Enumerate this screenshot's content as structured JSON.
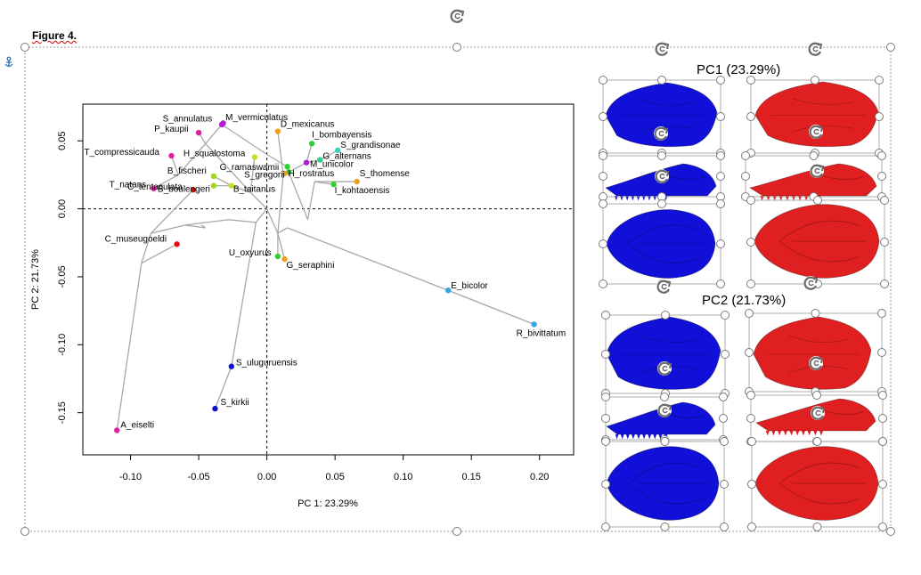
{
  "figure_label": "Figure 4.",
  "colors": {
    "negative_shape": "#1010d8",
    "positive_shape": "#e02020",
    "tree_line": "#a8a8a8",
    "handle": "#7a7a7a"
  },
  "icons": [
    "anchor-icon",
    "rotate-icon"
  ],
  "panels": {
    "pc1_title": "PC1 (23.29%)",
    "pc2_title": "PC2 (21.73%)"
  },
  "chart_data": {
    "type": "scatter",
    "xlabel": "PC 1: 23.29%",
    "ylabel": "PC 2: 21.73%",
    "xlim": [
      -0.135,
      0.225
    ],
    "ylim": [
      -0.181,
      0.077
    ],
    "x_ticks": [
      -0.1,
      -0.05,
      0.0,
      0.05,
      0.1,
      0.15,
      0.2
    ],
    "x_tick_labels": [
      "-0.10",
      "-0.05",
      "0.00",
      "0.05",
      "0.10",
      "0.15",
      "0.20"
    ],
    "y_ticks": [
      -0.15,
      -0.1,
      -0.05,
      0.0,
      0.05
    ],
    "y_tick_labels": [
      "-0.15",
      "-0.10",
      "-0.05",
      "0.00",
      "0.05"
    ],
    "reference_lines": {
      "x": 0,
      "y": 0
    },
    "points": [
      {
        "label": "S_annulatus",
        "x": -0.032,
        "y": 0.063,
        "color": "#b020d0"
      },
      {
        "label": "M_vermiculatus",
        "x": -0.033,
        "y": 0.062,
        "color": "#b020d0"
      },
      {
        "label": "P_kaupii",
        "x": -0.05,
        "y": 0.056,
        "color": "#e020a0"
      },
      {
        "label": "T_compressicauda",
        "x": -0.07,
        "y": 0.039,
        "color": "#e020a0"
      },
      {
        "label": "T_natans",
        "x": -0.083,
        "y": 0.015,
        "color": "#e020a0"
      },
      {
        "label": "H_squalostoma",
        "x": -0.009,
        "y": 0.038,
        "color": "#c8e020"
      },
      {
        "label": "G_ramaswamii",
        "x": 0.015,
        "y": 0.031,
        "color": "#30d030"
      },
      {
        "label": "B_fischeri",
        "x": -0.039,
        "y": 0.024,
        "color": "#a0d820"
      },
      {
        "label": "S_gregorii",
        "x": 0.016,
        "y": 0.027,
        "color": "#30d030"
      },
      {
        "label": "B_boulengeri",
        "x": -0.039,
        "y": 0.017,
        "color": "#a0d820"
      },
      {
        "label": "B_taitanus",
        "x": -0.026,
        "y": 0.017,
        "color": "#c8e020"
      },
      {
        "label": "D_mexicanus",
        "x": 0.008,
        "y": 0.057,
        "color": "#f0a020"
      },
      {
        "label": "I_bombayensis",
        "x": 0.033,
        "y": 0.048,
        "color": "#30d030"
      },
      {
        "label": "S_grandisonae",
        "x": 0.052,
        "y": 0.043,
        "color": "#30d8c0"
      },
      {
        "label": "G_alternans",
        "x": 0.039,
        "y": 0.036,
        "color": "#30d090"
      },
      {
        "label": "M_unicolor",
        "x": 0.029,
        "y": 0.034,
        "color": "#b020d0"
      },
      {
        "label": "H_rostratus",
        "x": 0.013,
        "y": 0.026,
        "color": "#f0a020"
      },
      {
        "label": "S_thomense",
        "x": 0.066,
        "y": 0.02,
        "color": "#f0a020"
      },
      {
        "label": "I_kohtaoensis",
        "x": 0.049,
        "y": 0.018,
        "color": "#30d030"
      },
      {
        "label": "C_tentaculata",
        "x": -0.054,
        "y": 0.014,
        "color": "#e01010"
      },
      {
        "label": "C_museugoeldi",
        "x": -0.066,
        "y": -0.026,
        "color": "#e01010"
      },
      {
        "label": "U_oxyurus",
        "x": 0.008,
        "y": -0.035,
        "color": "#30d030"
      },
      {
        "label": "G_seraphini",
        "x": 0.013,
        "y": -0.037,
        "color": "#f0a020"
      },
      {
        "label": "E_bicolor",
        "x": 0.133,
        "y": -0.06,
        "color": "#30a8e8"
      },
      {
        "label": "R_bivittatum",
        "x": 0.196,
        "y": -0.085,
        "color": "#30a8e8"
      },
      {
        "label": "S_uluguruensis",
        "x": -0.026,
        "y": -0.116,
        "color": "#1010d0"
      },
      {
        "label": "S_kirkii",
        "x": -0.038,
        "y": -0.147,
        "color": "#1010d0"
      },
      {
        "label": "A_eiselti",
        "x": -0.11,
        "y": -0.163,
        "color": "#e020a0"
      }
    ],
    "tree_edges": [
      [
        [
          -0.11,
          -0.163
        ],
        [
          -0.092,
          -0.04
        ]
      ],
      [
        [
          -0.092,
          -0.04
        ],
        [
          -0.066,
          -0.026
        ]
      ],
      [
        [
          -0.092,
          -0.04
        ],
        [
          -0.085,
          -0.018
        ]
      ],
      [
        [
          -0.085,
          -0.018
        ],
        [
          -0.054,
          0.014
        ]
      ],
      [
        [
          -0.085,
          -0.018
        ],
        [
          -0.06,
          -0.012
        ]
      ],
      [
        [
          -0.06,
          -0.012
        ],
        [
          -0.045,
          -0.014
        ]
      ],
      [
        [
          -0.045,
          -0.014
        ],
        [
          -0.048,
          -0.012
        ]
      ],
      [
        [
          -0.06,
          -0.012
        ],
        [
          -0.028,
          -0.008
        ]
      ],
      [
        [
          -0.028,
          -0.008
        ],
        [
          -0.008,
          -0.01
        ]
      ],
      [
        [
          -0.008,
          -0.01
        ],
        [
          -0.026,
          -0.116
        ]
      ],
      [
        [
          -0.026,
          -0.116
        ],
        [
          -0.038,
          -0.147
        ]
      ],
      [
        [
          -0.008,
          -0.01
        ],
        [
          0.0,
          0.0
        ]
      ],
      [
        [
          0.0,
          0.0
        ],
        [
          -0.012,
          0.012
        ]
      ],
      [
        [
          -0.012,
          0.012
        ],
        [
          -0.009,
          0.038
        ]
      ],
      [
        [
          -0.012,
          0.012
        ],
        [
          -0.026,
          0.017
        ]
      ],
      [
        [
          -0.026,
          0.017
        ],
        [
          -0.039,
          0.024
        ]
      ],
      [
        [
          -0.026,
          0.017
        ],
        [
          -0.039,
          0.017
        ]
      ],
      [
        [
          -0.012,
          0.012
        ],
        [
          -0.045,
          0.048
        ]
      ],
      [
        [
          -0.045,
          0.048
        ],
        [
          -0.05,
          0.056
        ]
      ],
      [
        [
          -0.045,
          0.048
        ],
        [
          -0.033,
          0.062
        ]
      ],
      [
        [
          -0.033,
          0.062
        ],
        [
          -0.032,
          0.063
        ]
      ],
      [
        [
          -0.045,
          0.048
        ],
        [
          -0.065,
          0.025
        ]
      ],
      [
        [
          -0.065,
          0.025
        ],
        [
          -0.07,
          0.039
        ]
      ],
      [
        [
          -0.065,
          0.025
        ],
        [
          -0.083,
          0.015
        ]
      ],
      [
        [
          -0.033,
          0.062
        ],
        [
          0.0,
          0.04
        ]
      ],
      [
        [
          0.0,
          0.04
        ],
        [
          0.015,
          0.031
        ]
      ],
      [
        [
          0.0,
          0.0
        ],
        [
          0.008,
          -0.018
        ]
      ],
      [
        [
          0.008,
          -0.018
        ],
        [
          0.008,
          -0.035
        ]
      ],
      [
        [
          0.008,
          -0.018
        ],
        [
          0.013,
          -0.037
        ]
      ],
      [
        [
          0.008,
          -0.018
        ],
        [
          0.012,
          0.025
        ]
      ],
      [
        [
          0.012,
          0.025
        ],
        [
          0.008,
          0.057
        ]
      ],
      [
        [
          0.012,
          0.025
        ],
        [
          0.013,
          0.026
        ]
      ],
      [
        [
          0.012,
          0.025
        ],
        [
          0.016,
          0.027
        ]
      ],
      [
        [
          0.016,
          0.027
        ],
        [
          0.029,
          0.034
        ]
      ],
      [
        [
          0.029,
          0.034
        ],
        [
          0.033,
          0.048
        ]
      ],
      [
        [
          0.029,
          0.034
        ],
        [
          0.039,
          0.036
        ]
      ],
      [
        [
          0.039,
          0.036
        ],
        [
          0.052,
          0.043
        ]
      ],
      [
        [
          0.016,
          0.027
        ],
        [
          0.03,
          -0.008
        ]
      ],
      [
        [
          0.03,
          -0.008
        ],
        [
          0.035,
          0.02
        ]
      ],
      [
        [
          0.035,
          0.02
        ],
        [
          0.049,
          0.018
        ]
      ],
      [
        [
          0.035,
          0.02
        ],
        [
          0.066,
          0.02
        ]
      ],
      [
        [
          0.008,
          -0.018
        ],
        [
          0.015,
          -0.014
        ]
      ],
      [
        [
          0.015,
          -0.014
        ],
        [
          0.133,
          -0.06
        ]
      ],
      [
        [
          0.133,
          -0.06
        ],
        [
          0.196,
          -0.085
        ]
      ]
    ]
  }
}
